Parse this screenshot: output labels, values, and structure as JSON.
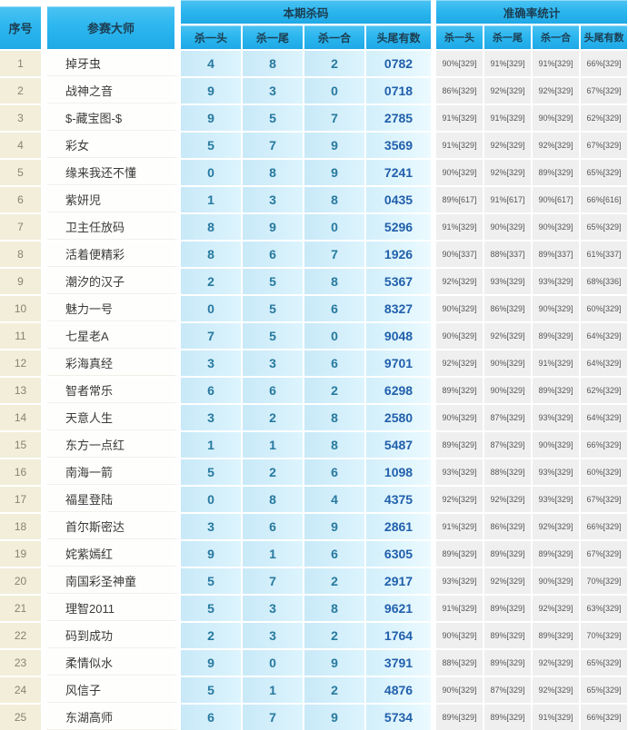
{
  "header": {
    "serial": "序号",
    "master": "参赛大师",
    "group_kill": "本期杀码",
    "group_accuracy": "准确率统计",
    "kill_cols": [
      "杀一头",
      "杀一尾",
      "杀一合",
      "头尾有数"
    ],
    "acc_cols": [
      "杀一头",
      "杀一尾",
      "杀一合",
      "头尾有数"
    ]
  },
  "colors": {
    "header_cyan": "#2db7ef",
    "header_text": "#1c3e52",
    "serial_bg": "#f2eeda",
    "kill_cell_bg": "#cfecf9",
    "kill_digit_teal": "#27799f",
    "headtail_blue": "#2160ac",
    "acc_cell_bg": "#efefef"
  },
  "rows": [
    {
      "no": "1",
      "master": "掉牙虫",
      "kill": [
        "4",
        "8",
        "2",
        "0782"
      ],
      "acc": [
        "90%[329]",
        "91%[329]",
        "91%[329]",
        "66%[329]"
      ]
    },
    {
      "no": "2",
      "master": "战神之音",
      "kill": [
        "9",
        "3",
        "0",
        "0718"
      ],
      "acc": [
        "86%[329]",
        "92%[329]",
        "92%[329]",
        "67%[329]"
      ]
    },
    {
      "no": "3",
      "master": "$-藏宝图-$",
      "kill": [
        "9",
        "5",
        "7",
        "2785"
      ],
      "acc": [
        "91%[329]",
        "91%[329]",
        "90%[329]",
        "62%[329]"
      ]
    },
    {
      "no": "4",
      "master": "彩女",
      "kill": [
        "5",
        "7",
        "9",
        "3569"
      ],
      "acc": [
        "91%[329]",
        "92%[329]",
        "92%[329]",
        "67%[329]"
      ]
    },
    {
      "no": "5",
      "master": "缘来我还不懂",
      "kill": [
        "0",
        "8",
        "9",
        "7241"
      ],
      "acc": [
        "90%[329]",
        "92%[329]",
        "89%[329]",
        "65%[329]"
      ]
    },
    {
      "no": "6",
      "master": "紫妍児",
      "kill": [
        "1",
        "3",
        "8",
        "0435"
      ],
      "acc": [
        "89%[617]",
        "91%[617]",
        "90%[617]",
        "66%[616]"
      ]
    },
    {
      "no": "7",
      "master": "卫主任放码",
      "kill": [
        "8",
        "9",
        "0",
        "5296"
      ],
      "acc": [
        "91%[329]",
        "90%[329]",
        "90%[329]",
        "65%[329]"
      ]
    },
    {
      "no": "8",
      "master": "活着便精彩",
      "kill": [
        "8",
        "6",
        "7",
        "1926"
      ],
      "acc": [
        "90%[337]",
        "88%[337]",
        "89%[337]",
        "61%[337]"
      ]
    },
    {
      "no": "9",
      "master": "潮汐的汉子",
      "kill": [
        "2",
        "5",
        "8",
        "5367"
      ],
      "acc": [
        "92%[329]",
        "93%[329]",
        "93%[329]",
        "68%[336]"
      ]
    },
    {
      "no": "10",
      "master": "魅力一号",
      "kill": [
        "0",
        "5",
        "6",
        "8327"
      ],
      "acc": [
        "90%[329]",
        "86%[329]",
        "90%[329]",
        "60%[329]"
      ]
    },
    {
      "no": "11",
      "master": "七星老A",
      "kill": [
        "7",
        "5",
        "0",
        "9048"
      ],
      "acc": [
        "90%[329]",
        "92%[329]",
        "89%[329]",
        "64%[329]"
      ]
    },
    {
      "no": "12",
      "master": "彩海真经",
      "kill": [
        "3",
        "3",
        "6",
        "9701"
      ],
      "acc": [
        "92%[329]",
        "90%[329]",
        "91%[329]",
        "64%[329]"
      ]
    },
    {
      "no": "13",
      "master": "智者常乐",
      "kill": [
        "6",
        "6",
        "2",
        "6298"
      ],
      "acc": [
        "89%[329]",
        "90%[329]",
        "89%[329]",
        "62%[329]"
      ]
    },
    {
      "no": "14",
      "master": "天意人生",
      "kill": [
        "3",
        "2",
        "8",
        "2580"
      ],
      "acc": [
        "90%[329]",
        "87%[329]",
        "93%[329]",
        "64%[329]"
      ]
    },
    {
      "no": "15",
      "master": "东方一点红",
      "kill": [
        "1",
        "1",
        "8",
        "5487"
      ],
      "acc": [
        "89%[329]",
        "87%[329]",
        "90%[329]",
        "66%[329]"
      ]
    },
    {
      "no": "16",
      "master": "南海一箭",
      "kill": [
        "5",
        "2",
        "6",
        "1098"
      ],
      "acc": [
        "93%[329]",
        "88%[329]",
        "93%[329]",
        "60%[329]"
      ]
    },
    {
      "no": "17",
      "master": "福星登陆",
      "kill": [
        "0",
        "8",
        "4",
        "4375"
      ],
      "acc": [
        "92%[329]",
        "92%[329]",
        "93%[329]",
        "67%[329]"
      ]
    },
    {
      "no": "18",
      "master": "首尔斯密达",
      "kill": [
        "3",
        "6",
        "9",
        "2861"
      ],
      "acc": [
        "91%[329]",
        "86%[329]",
        "92%[329]",
        "66%[329]"
      ]
    },
    {
      "no": "19",
      "master": "姹紫嫣红",
      "kill": [
        "9",
        "1",
        "6",
        "6305"
      ],
      "acc": [
        "89%[329]",
        "89%[329]",
        "89%[329]",
        "67%[329]"
      ]
    },
    {
      "no": "20",
      "master": "南国彩圣神童",
      "kill": [
        "5",
        "7",
        "2",
        "2917"
      ],
      "acc": [
        "93%[329]",
        "92%[329]",
        "90%[329]",
        "70%[329]"
      ]
    },
    {
      "no": "21",
      "master": "理智2011",
      "kill": [
        "5",
        "3",
        "8",
        "9621"
      ],
      "acc": [
        "91%[329]",
        "89%[329]",
        "92%[329]",
        "63%[329]"
      ]
    },
    {
      "no": "22",
      "master": "码到成功",
      "kill": [
        "2",
        "3",
        "2",
        "1764"
      ],
      "acc": [
        "90%[329]",
        "89%[329]",
        "89%[329]",
        "70%[329]"
      ]
    },
    {
      "no": "23",
      "master": "柔情似水",
      "kill": [
        "9",
        "0",
        "9",
        "3791"
      ],
      "acc": [
        "88%[329]",
        "89%[329]",
        "92%[329]",
        "65%[329]"
      ]
    },
    {
      "no": "24",
      "master": "风信子",
      "kill": [
        "5",
        "1",
        "2",
        "4876"
      ],
      "acc": [
        "90%[329]",
        "87%[329]",
        "92%[329]",
        "65%[329]"
      ]
    },
    {
      "no": "25",
      "master": "东湖高师",
      "kill": [
        "6",
        "7",
        "9",
        "5734"
      ],
      "acc": [
        "89%[329]",
        "89%[329]",
        "91%[329]",
        "66%[329]"
      ]
    }
  ]
}
